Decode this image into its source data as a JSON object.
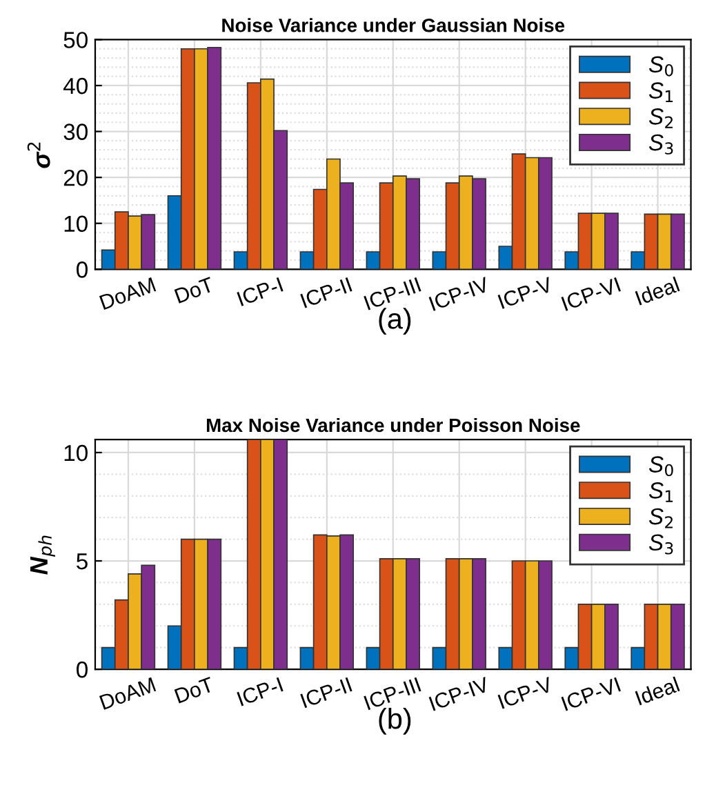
{
  "chart_data": [
    {
      "type": "bar",
      "title": "Noise Variance under Gaussian Noise",
      "ylabel": "σ$^{2}$",
      "categories": [
        "DoAM",
        "DoT",
        "ICP-I",
        "ICP-II",
        "ICP-III",
        "ICP-IV",
        "ICP-V",
        "ICP-VI",
        "Ideal"
      ],
      "series": [
        {
          "name": "S$_{0}$",
          "color": "#0072bd",
          "values": [
            4.2,
            16,
            3.8,
            3.8,
            3.8,
            3.8,
            5,
            3.8,
            3.8
          ]
        },
        {
          "name": "S$_{1}$",
          "color": "#d95319",
          "values": [
            12.5,
            48,
            40.6,
            17.4,
            18.8,
            18.8,
            25.1,
            12.2,
            12
          ]
        },
        {
          "name": "S$_{2}$",
          "color": "#edb120",
          "values": [
            11.6,
            48,
            41.4,
            24,
            20.3,
            20.3,
            24.3,
            12.2,
            12
          ]
        },
        {
          "name": "S$_{3}$",
          "color": "#7e2f8e",
          "values": [
            11.9,
            48.3,
            30.2,
            18.8,
            19.7,
            19.7,
            24.3,
            12.2,
            12
          ]
        }
      ],
      "ylim": [
        0,
        50
      ],
      "yticks": [
        0,
        10,
        20,
        30,
        40,
        50
      ],
      "grid": true,
      "legend": "top right",
      "annotations": [
        "(a)"
      ]
    },
    {
      "type": "bar",
      "title": "Max Noise Variance under Poisson Noise",
      "ylabel": "N$_{ph}$",
      "categories": [
        "DoAM",
        "DoT",
        "ICP-I",
        "ICP-II",
        "ICP-III",
        "ICP-IV",
        "ICP-V",
        "ICP-VI",
        "Ideal"
      ],
      "series": [
        {
          "name": "S$_{0}$",
          "color": "#0072bd",
          "values": [
            1.0,
            2.0,
            1.0,
            1.0,
            1.0,
            1.0,
            1.0,
            1.0,
            1.0
          ]
        },
        {
          "name": "S$_{1}$",
          "color": "#d95319",
          "values": [
            3.2,
            6,
            10.6,
            6.2,
            5.1,
            5.1,
            5,
            3,
            3
          ]
        },
        {
          "name": "S$_{2}$",
          "color": "#edb120",
          "values": [
            4.4,
            6,
            10.6,
            6.15,
            5.1,
            5.1,
            5,
            3,
            3
          ]
        },
        {
          "name": "S$_{3}$",
          "color": "#7e2f8e",
          "values": [
            4.8,
            6,
            10.6,
            6.2,
            5.1,
            5.1,
            5,
            3,
            3
          ]
        }
      ],
      "ylim": [
        0,
        10.6
      ],
      "yticks": [
        0,
        5,
        10
      ],
      "grid": true,
      "legend": "top right",
      "annotations": [
        "(b)"
      ]
    }
  ]
}
